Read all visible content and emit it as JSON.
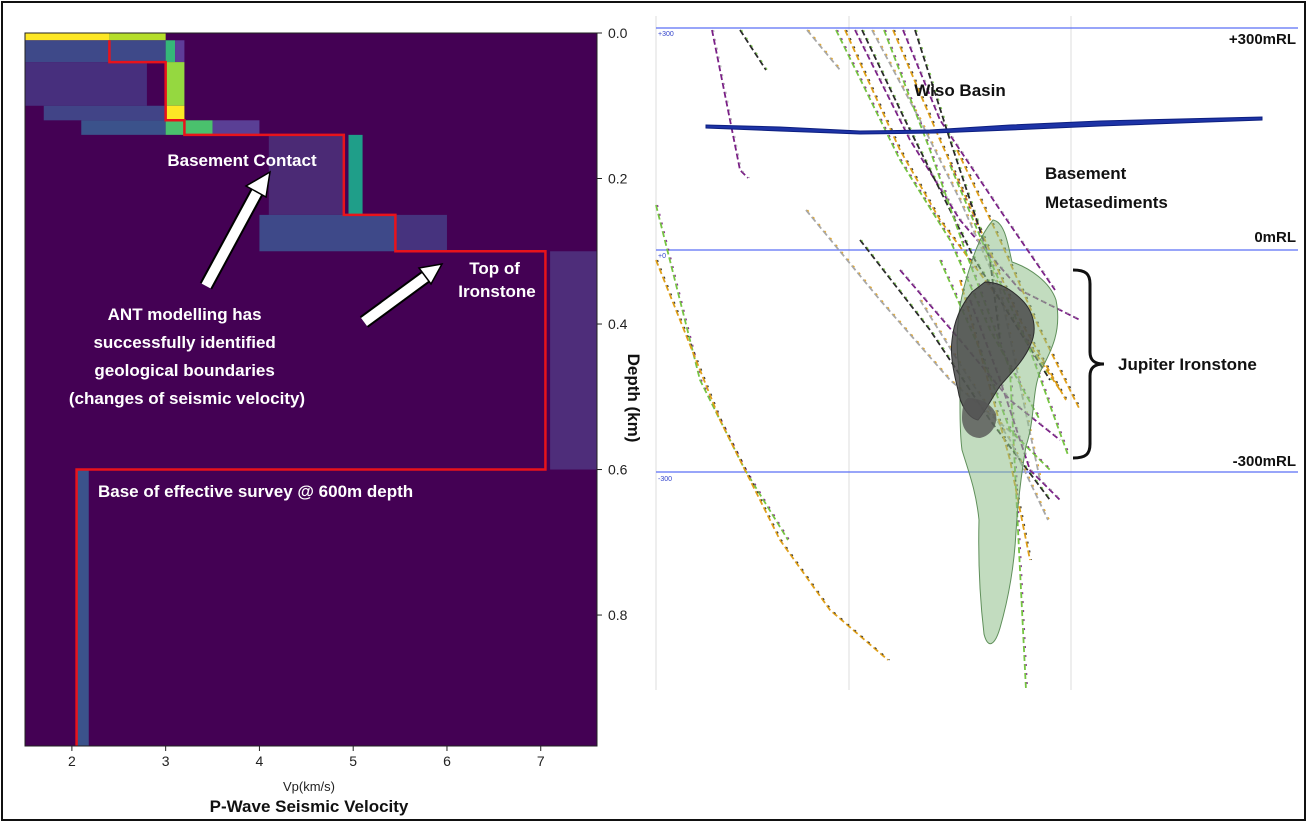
{
  "chart_data": [
    {
      "type": "heatmap",
      "xlabel": "Vp(km/s)",
      "ylabel": "Depth (km)",
      "caption": "P-Wave Seismic Velocity",
      "x_ticks": [
        "2",
        "3",
        "4",
        "5",
        "6",
        "7"
      ],
      "y_ticks": [
        "0.0",
        "0.2",
        "0.4",
        "0.6",
        "0.8"
      ],
      "xlim": [
        1.5,
        7.6
      ],
      "ylim": [
        0.98,
        0.0
      ],
      "background": "#440154",
      "velocity_profile": {
        "vp": [
          2.4,
          2.4,
          3.0,
          3.0,
          3.2,
          3.2,
          4.9,
          4.9,
          5.45,
          5.45,
          7.05,
          7.05,
          2.05,
          2.05
        ],
        "depth": [
          0.01,
          0.04,
          0.04,
          0.12,
          0.12,
          0.14,
          0.14,
          0.25,
          0.25,
          0.3,
          0.3,
          0.6,
          0.6,
          0.98
        ],
        "color": "#e8131b"
      },
      "cells": [
        {
          "x0": 1.5,
          "x1": 2.4,
          "y0": 0.0,
          "y1": 0.01,
          "c": "#fde725"
        },
        {
          "x0": 2.4,
          "x1": 3.0,
          "y0": 0.0,
          "y1": 0.01,
          "c": "#b5de2b"
        },
        {
          "x0": 1.5,
          "x1": 3.0,
          "y0": 0.01,
          "y1": 0.04,
          "c": "#3e4989"
        },
        {
          "x0": 3.0,
          "x1": 3.1,
          "y0": 0.01,
          "y1": 0.04,
          "c": "#35b779"
        },
        {
          "x0": 3.1,
          "x1": 3.2,
          "y0": 0.01,
          "y1": 0.04,
          "c": "#5e3c99"
        },
        {
          "x0": 1.5,
          "x1": 2.8,
          "y0": 0.04,
          "y1": 0.1,
          "c": "#472f7d"
        },
        {
          "x0": 3.0,
          "x1": 3.2,
          "y0": 0.04,
          "y1": 0.1,
          "c": "#95d840"
        },
        {
          "x0": 1.7,
          "x1": 3.0,
          "y0": 0.1,
          "y1": 0.12,
          "c": "#414487"
        },
        {
          "x0": 3.0,
          "x1": 3.2,
          "y0": 0.1,
          "y1": 0.12,
          "c": "#fde725"
        },
        {
          "x0": 2.1,
          "x1": 3.0,
          "y0": 0.12,
          "y1": 0.14,
          "c": "#3b528b"
        },
        {
          "x0": 3.0,
          "x1": 3.5,
          "y0": 0.12,
          "y1": 0.14,
          "c": "#4ac16d"
        },
        {
          "x0": 3.5,
          "x1": 4.0,
          "y0": 0.12,
          "y1": 0.14,
          "c": "#5a3f95"
        },
        {
          "x0": 4.95,
          "x1": 5.1,
          "y0": 0.14,
          "y1": 0.25,
          "c": "#1f9e89"
        },
        {
          "x0": 4.1,
          "x1": 4.9,
          "y0": 0.14,
          "y1": 0.25,
          "c": "#4b2a75"
        },
        {
          "x0": 4.0,
          "x1": 5.45,
          "y0": 0.25,
          "y1": 0.3,
          "c": "#3e4989"
        },
        {
          "x0": 5.45,
          "x1": 6.0,
          "y0": 0.25,
          "y1": 0.3,
          "c": "#46337e"
        },
        {
          "x0": 7.1,
          "x1": 7.6,
          "y0": 0.3,
          "y1": 0.6,
          "c": "#4e2d7a"
        },
        {
          "x0": 2.05,
          "x1": 2.18,
          "y0": 0.6,
          "y1": 0.98,
          "c": "#3b528b"
        }
      ],
      "annotations": [
        {
          "text": "Basement Contact",
          "lines": [
            "Basement Contact"
          ]
        },
        {
          "text": "Top of Ironstone",
          "lines": [
            "Top of",
            "Ironstone"
          ]
        },
        {
          "text": "ANT modelling has successfully identified geological boundaries (changes of seismic velocity)",
          "lines": [
            "ANT modelling has",
            "successfully identified",
            "geological boundaries",
            "(changes of seismic velocity)"
          ]
        },
        {
          "text": "Base of effective survey @ 600m depth",
          "lines": [
            "Base of effective survey @ 600m depth"
          ]
        }
      ]
    },
    {
      "type": "cross-section",
      "rl_labels": [
        "+300mRL",
        "0mRL",
        "-300mRL"
      ],
      "rl_small_labels": [
        "+300",
        "+0",
        "-300"
      ],
      "rl_values_m": [
        300,
        0,
        -300
      ],
      "line_color": "#5b6ff5",
      "unit_labels": [
        {
          "text": "Wiso Basin",
          "lines": [
            "Wiso Basin"
          ]
        },
        {
          "text": "Basement Metasediments",
          "lines": [
            "Basement",
            "Metasediments"
          ]
        },
        {
          "text": "Jupiter Ironstone",
          "lines": [
            "Jupiter Ironstone"
          ]
        }
      ],
      "drillhole_colors": [
        "#76c442",
        "#e0a01a",
        "#7a1f86",
        "#2a2a2a",
        "#a8a8a8"
      ],
      "basin_surface_color": "#1d33a6",
      "ironstone_color": "#4a4a4a",
      "halo_color": "#8fbf8a"
    }
  ]
}
